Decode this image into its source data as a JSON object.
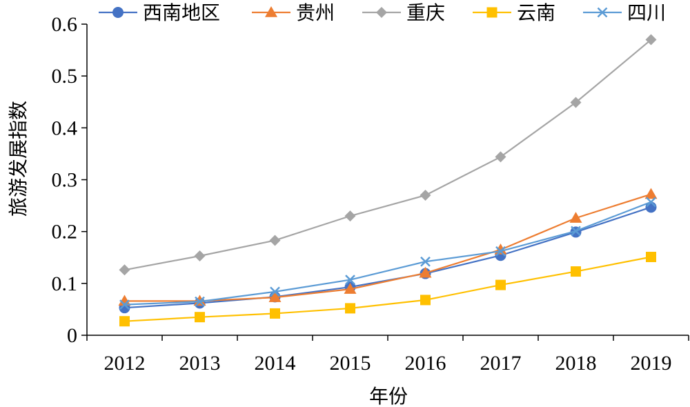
{
  "chart_data": {
    "type": "line",
    "title": "",
    "xlabel": "年份",
    "ylabel": "旅游发展指数",
    "categories": [
      "2012",
      "2013",
      "2014",
      "2015",
      "2016",
      "2017",
      "2018",
      "2019"
    ],
    "ylim": [
      0,
      0.6
    ],
    "yticks": [
      "0",
      "0.1",
      "0.2",
      "0.3",
      "0.4",
      "0.5",
      "0.6"
    ],
    "grid": false,
    "legend_position": "top",
    "series": [
      {
        "name": "西南地区",
        "color": "#4472C4",
        "marker": "circle",
        "values": [
          0.053,
          0.062,
          0.074,
          0.093,
          0.119,
          0.154,
          0.199,
          0.247
        ]
      },
      {
        "name": "贵州",
        "color": "#ED7D31",
        "marker": "triangle",
        "values": [
          0.066,
          0.066,
          0.073,
          0.089,
          0.12,
          0.165,
          0.226,
          0.272
        ]
      },
      {
        "name": "重庆",
        "color": "#A5A5A5",
        "marker": "diamond",
        "values": [
          0.126,
          0.153,
          0.183,
          0.23,
          0.27,
          0.344,
          0.449,
          0.57
        ]
      },
      {
        "name": "云南",
        "color": "#FFC000",
        "marker": "square",
        "values": [
          0.027,
          0.035,
          0.042,
          0.052,
          0.068,
          0.097,
          0.123,
          0.151
        ]
      },
      {
        "name": "四川",
        "color": "#5B9BD5",
        "marker": "x",
        "values": [
          0.059,
          0.065,
          0.084,
          0.107,
          0.142,
          0.162,
          0.201,
          0.257
        ]
      }
    ]
  }
}
